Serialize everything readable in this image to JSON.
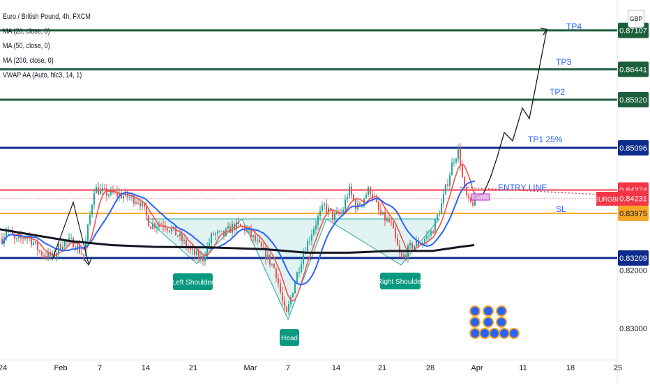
{
  "chart_data": {
    "type": "candlestick",
    "symbol_title": "Euro / British Pound, 4h, FXCM",
    "indicators": [
      "MA (20, close, 0)",
      "MA (50, close, 0)",
      "MA (200, close, 0)",
      "VWAP AA (Auto, hlc3, 14, 1)"
    ],
    "currency": "GBP",
    "ylim": [
      0.8166,
      0.8745
    ],
    "y_ticks": [
      "0.82000",
      "0.83000"
    ],
    "x_ticks": [
      "24",
      "Feb",
      "7",
      "14",
      "21",
      "Mar",
      "7",
      "14",
      "21",
      "28",
      "Apr",
      "11",
      "18",
      "25"
    ],
    "levels": [
      {
        "key": "tp4",
        "price": 0.87107,
        "label": "0.87107",
        "text": "TP4",
        "color": "#1b5e3b"
      },
      {
        "key": "tp3",
        "price": 0.86441,
        "label": "0.86441",
        "text": "TP3",
        "color": "#1b5e3b"
      },
      {
        "key": "tp2",
        "price": 0.8592,
        "label": "0.85920",
        "text": "TP2",
        "color": "#1b5e3b"
      },
      {
        "key": "tp1",
        "price": 0.85096,
        "label": "0.85096",
        "text": "TP1 25%",
        "color": "#0d2b8c"
      },
      {
        "key": "res",
        "price": 0.84374,
        "label": "0.84374",
        "text": "",
        "color": "#f23645"
      },
      {
        "key": "entry",
        "price": 0.84231,
        "label": "0.84231",
        "text": "ENTRY LINE",
        "color": "#f7a8b2"
      },
      {
        "key": "sl",
        "price": 0.83975,
        "label": "0.83975",
        "text": "SL",
        "color": "#f5a623"
      },
      {
        "key": "support",
        "price": 0.83209,
        "label": "0.83209",
        "text": "",
        "color": "#0d2b8c"
      }
    ],
    "symbol_badge": "EURGBP",
    "pattern_labels": [
      "Left Shoulder",
      "Head",
      "Right Shoulder"
    ],
    "colors": {
      "up": "#26a69a",
      "down": "#ef5350",
      "ma20": "#ef5350",
      "ma50": "#2962ff",
      "ma200": "#131722",
      "pattern": "#26a69a"
    }
  }
}
